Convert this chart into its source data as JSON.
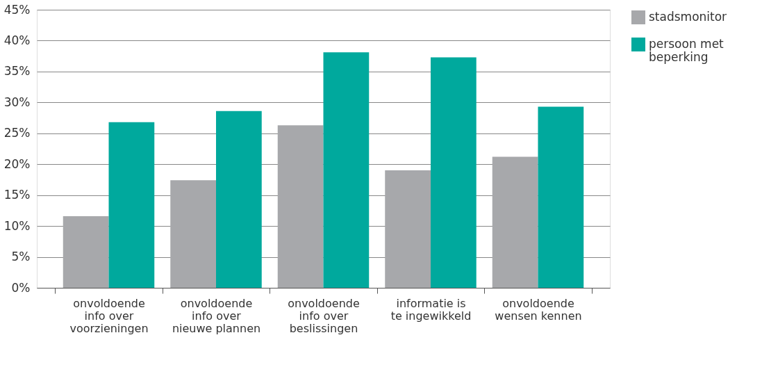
{
  "chart_data": {
    "type": "bar",
    "categories": [
      "onvoldoende info over voorzieningen",
      "onvoldoende info over nieuwe plannen",
      "onvoldoende info over beslissingen",
      "informatie is te ingewikkeld",
      "onvoldoende wensen kennen"
    ],
    "series": [
      {
        "name": "stadsmonitor",
        "color": "#a7a8ab",
        "values": [
          11.6,
          17.4,
          26.3,
          19.0,
          21.2
        ]
      },
      {
        "name": "persoon met beperking",
        "color": "#00a99d",
        "values": [
          26.8,
          28.6,
          38.1,
          37.3,
          29.3
        ]
      }
    ],
    "ylim": [
      0,
      45
    ],
    "yticks": [
      {
        "value": 0,
        "label": "0%"
      },
      {
        "value": 5,
        "label": "5%"
      },
      {
        "value": 10,
        "label": "10%"
      },
      {
        "value": 15,
        "label": "15%"
      },
      {
        "value": 20,
        "label": "20%"
      },
      {
        "value": 25,
        "label": "25%"
      },
      {
        "value": 30,
        "label": "30%"
      },
      {
        "value": 35,
        "label": "35%"
      },
      {
        "value": 40,
        "label": "40%"
      },
      {
        "value": 45,
        "label": "45%"
      }
    ],
    "grid": "y",
    "legend": "right"
  }
}
